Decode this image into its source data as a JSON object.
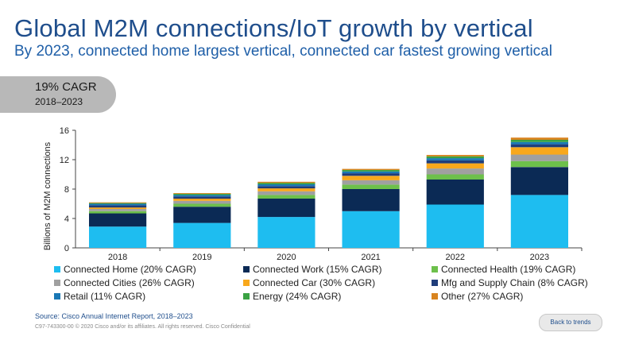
{
  "header": {
    "title": "Global M2M connections/IoT growth by vertical",
    "subtitle": "By 2023, connected home largest vertical, connected car fastest growing vertical"
  },
  "cagr_callout": {
    "value": "19% CAGR",
    "period": "2018–2023"
  },
  "chart_data": {
    "type": "bar",
    "stacked": true,
    "title": "",
    "xlabel": "",
    "ylabel": "Billions of M2M connections",
    "ylim": [
      0,
      16
    ],
    "yticks": [
      0,
      4,
      8,
      12,
      16
    ],
    "grid": false,
    "categories": [
      "2018",
      "2019",
      "2020",
      "2021",
      "2022",
      "2023"
    ],
    "series": [
      {
        "name": "Connected Home (20% CAGR)",
        "color": "#1ebdf0",
        "values": [
          2.9,
          3.4,
          4.2,
          5.0,
          5.9,
          7.2
        ]
      },
      {
        "name": "Connected Work (15% CAGR)",
        "color": "#0b2a55",
        "values": [
          1.8,
          2.2,
          2.5,
          3.0,
          3.4,
          3.8
        ]
      },
      {
        "name": "Connected Health (19% CAGR)",
        "color": "#6dc04b",
        "values": [
          0.3,
          0.4,
          0.5,
          0.6,
          0.7,
          0.8
        ]
      },
      {
        "name": "Connected Cities (26% CAGR)",
        "color": "#a0a0a0",
        "values": [
          0.3,
          0.4,
          0.5,
          0.6,
          0.8,
          0.9
        ]
      },
      {
        "name": "Connected Car (30% CAGR)",
        "color": "#f8a81c",
        "values": [
          0.2,
          0.3,
          0.4,
          0.6,
          0.7,
          1.0
        ]
      },
      {
        "name": "Mfg and Supply Chain (8% CAGR)",
        "color": "#1f3d7a",
        "values": [
          0.3,
          0.3,
          0.3,
          0.35,
          0.4,
          0.4
        ]
      },
      {
        "name": "Retail (11% CAGR)",
        "color": "#1a78b5",
        "values": [
          0.2,
          0.2,
          0.25,
          0.25,
          0.3,
          0.3
        ]
      },
      {
        "name": "Energy (24% CAGR)",
        "color": "#3aa243",
        "values": [
          0.1,
          0.15,
          0.2,
          0.2,
          0.25,
          0.3
        ]
      },
      {
        "name": "Other (27% CAGR)",
        "color": "#d8841f",
        "values": [
          0.1,
          0.1,
          0.15,
          0.15,
          0.2,
          0.3
        ]
      }
    ],
    "legend_position": "bottom"
  },
  "footer": {
    "source": "Source: Cisco Annual Internet Report, 2018–2023",
    "copyright": "C97-743300-00 © 2020 Cisco and/or its affiliates. All rights reserved.   Cisco Confidential",
    "back_button": "Back to trends"
  }
}
